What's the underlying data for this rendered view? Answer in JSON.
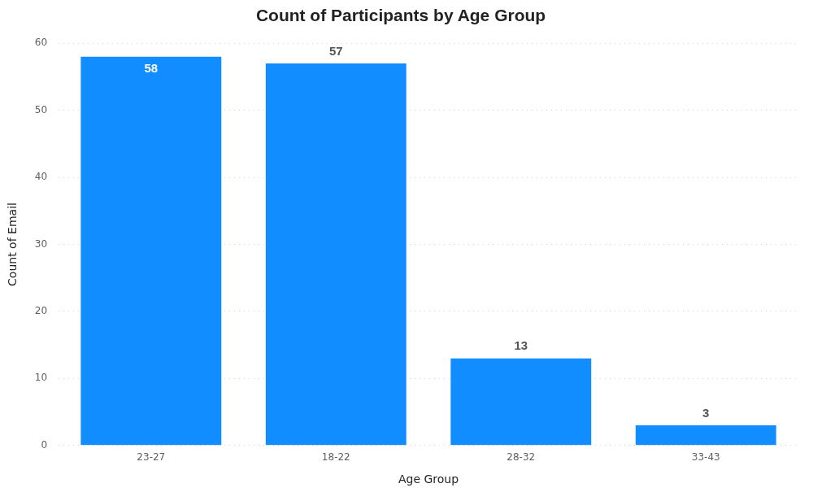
{
  "chart_data": {
    "type": "bar",
    "title": "Count of Participants by Age Group",
    "xlabel": "Age Group",
    "ylabel": "Count of Email",
    "categories": [
      "23-27",
      "18-22",
      "28-32",
      "33-43"
    ],
    "values": [
      58,
      57,
      13,
      3
    ],
    "color": "#118dff",
    "ylim": [
      0,
      60
    ],
    "yticks": [
      0,
      10,
      20,
      30,
      40,
      50,
      60
    ],
    "grid": "y",
    "legend": false,
    "data_labels": true
  }
}
